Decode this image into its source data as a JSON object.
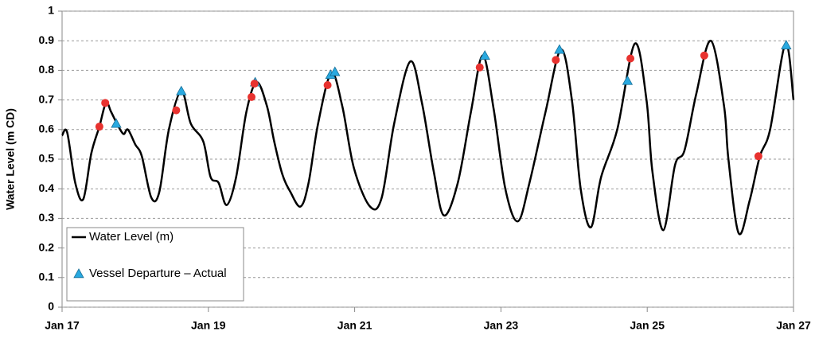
{
  "chart_data": {
    "type": "line",
    "y_label": "Water Level (m CD)",
    "xlim": [
      17,
      27
    ],
    "xticks": [
      {
        "value": 17,
        "label": "Jan 17"
      },
      {
        "value": 19,
        "label": "Jan 19"
      },
      {
        "value": 21,
        "label": "Jan 21"
      },
      {
        "value": 23,
        "label": "Jan 23"
      },
      {
        "value": 25,
        "label": "Jan 25"
      },
      {
        "value": 27,
        "label": "Jan 27"
      }
    ],
    "ylim": [
      0,
      1
    ],
    "yticks": [
      0,
      0.1,
      0.2,
      0.3,
      0.4,
      0.5,
      0.6,
      0.7,
      0.8,
      0.9,
      1
    ],
    "grid": true,
    "legend": "lower-left",
    "series": [
      {
        "name": "Water Level (m)",
        "color": "#000000",
        "marker": "line",
        "x": [
          17.0,
          17.07,
          17.18,
          17.29,
          17.4,
          17.51,
          17.6,
          17.67,
          17.76,
          17.84,
          17.9,
          18.0,
          18.09,
          18.22,
          18.33,
          18.46,
          18.63,
          18.76,
          18.93,
          19.03,
          19.14,
          19.25,
          19.38,
          19.52,
          19.66,
          19.8,
          19.9,
          20.01,
          20.12,
          20.26,
          20.37,
          20.5,
          20.68,
          20.83,
          20.99,
          21.21,
          21.37,
          21.54,
          21.76,
          21.92,
          22.08,
          22.22,
          22.41,
          22.59,
          22.75,
          22.9,
          23.06,
          23.23,
          23.39,
          23.61,
          23.82,
          23.97,
          24.09,
          24.23,
          24.37,
          24.59,
          24.83,
          24.99,
          25.07,
          25.22,
          25.38,
          25.51,
          25.67,
          25.87,
          26.05,
          26.11,
          26.25,
          26.4,
          26.54,
          26.68,
          26.89,
          27.0
        ],
        "values": [
          0.58,
          0.59,
          0.42,
          0.365,
          0.52,
          0.61,
          0.69,
          0.66,
          0.615,
          0.585,
          0.6,
          0.55,
          0.51,
          0.37,
          0.39,
          0.6,
          0.73,
          0.62,
          0.56,
          0.44,
          0.42,
          0.345,
          0.44,
          0.66,
          0.76,
          0.68,
          0.56,
          0.45,
          0.39,
          0.34,
          0.42,
          0.62,
          0.79,
          0.68,
          0.47,
          0.34,
          0.37,
          0.62,
          0.83,
          0.69,
          0.46,
          0.31,
          0.42,
          0.66,
          0.85,
          0.67,
          0.4,
          0.29,
          0.42,
          0.66,
          0.87,
          0.7,
          0.4,
          0.27,
          0.44,
          0.6,
          0.89,
          0.7,
          0.46,
          0.26,
          0.48,
          0.53,
          0.72,
          0.9,
          0.68,
          0.5,
          0.25,
          0.36,
          0.51,
          0.6,
          0.89,
          0.7
        ]
      },
      {
        "name": "Vessel Departure – Actual",
        "color": "#29a9e0",
        "marker": "triangle",
        "x": [
          17.74,
          18.63,
          19.64,
          20.67,
          20.73,
          22.78,
          23.8,
          24.73,
          26.9
        ],
        "values": [
          0.62,
          0.73,
          0.76,
          0.785,
          0.795,
          0.85,
          0.87,
          0.765,
          0.885
        ]
      },
      {
        "color": "#e8322f",
        "marker": "circle",
        "x": [
          17.51,
          17.59,
          18.56,
          19.59,
          19.63,
          20.63,
          22.71,
          23.75,
          24.77,
          25.78,
          26.52
        ],
        "values": [
          0.61,
          0.69,
          0.665,
          0.71,
          0.755,
          0.75,
          0.81,
          0.835,
          0.84,
          0.85,
          0.51
        ]
      }
    ]
  }
}
